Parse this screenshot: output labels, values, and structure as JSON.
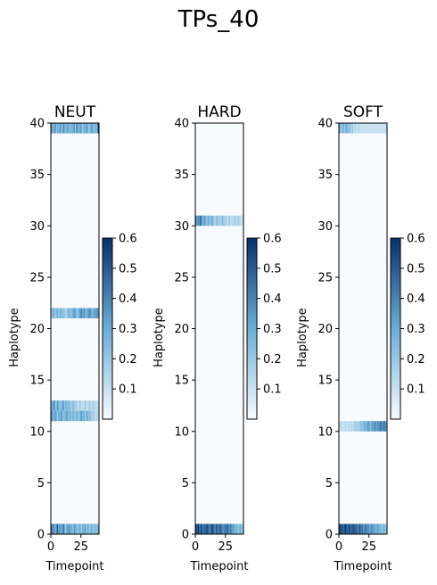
{
  "figure": {
    "suptitle": "TPs_40"
  },
  "chart_data": [
    {
      "type": "heatmap",
      "title": "NEUT",
      "xlabel": "Timepoint",
      "ylabel": "Haplotype",
      "xticks": [
        0,
        25
      ],
      "yticks": [
        0,
        5,
        10,
        15,
        20,
        25,
        30,
        35,
        40
      ],
      "xlim": [
        0,
        40
      ],
      "ylim": [
        0,
        40
      ],
      "colormap": "Blues",
      "colorbar": {
        "ticks": [
          0.1,
          0.2,
          0.3,
          0.4,
          0.5,
          0.6
        ],
        "vmin": 0.0,
        "vmax": 0.6,
        "low_color": "#f7fbff",
        "high_color": "#08306b"
      },
      "dense_rows": [
        {
          "haplotype": 39,
          "values": [
            0.35,
            0.3,
            0.25,
            0.4,
            0.2,
            0.3,
            0.25,
            0.35,
            0.3,
            0.2,
            0.4,
            0.3,
            0.25,
            0.3,
            0.35,
            0.2,
            0.3,
            0.25,
            0.3,
            0.35,
            0.2,
            0.4,
            0.3,
            0.25,
            0.35,
            0.3,
            0.2,
            0.3,
            0.25,
            0.35,
            0.3,
            0.2,
            0.25,
            0.3,
            0.35,
            0.2,
            0.3,
            0.25,
            0.3,
            0.6
          ]
        },
        {
          "haplotype": 12,
          "values": [
            0.3,
            0.25,
            0.4,
            0.3,
            0.2,
            0.35,
            0.3,
            0.2,
            0.25,
            0.3,
            0.35,
            0.2,
            0.3,
            0.25,
            0.2,
            0.3,
            0.15,
            0.2,
            0.25,
            0.2,
            0.15,
            0.2,
            0.1,
            0.15,
            0.2,
            0.1,
            0.15,
            0.1,
            0.2,
            0.15,
            0.1,
            0.15,
            0.2,
            0.1,
            0.15,
            0.2,
            0.1,
            0.15,
            0.1,
            0.1
          ]
        },
        {
          "haplotype": 11,
          "values": [
            0.4,
            0.3,
            0.25,
            0.35,
            0.3,
            0.2,
            0.3,
            0.25,
            0.35,
            0.3,
            0.2,
            0.25,
            0.3,
            0.35,
            0.2,
            0.3,
            0.25,
            0.2,
            0.3,
            0.25,
            0.2,
            0.3,
            0.25,
            0.2,
            0.3,
            0.35,
            0.25,
            0.3,
            0.2,
            0.25,
            0.3,
            0.2,
            0.25,
            0.2,
            0.15,
            0.2,
            0.15,
            0.1,
            0.15,
            0.1
          ]
        },
        {
          "haplotype": 21,
          "values": [
            0.2,
            0.25,
            0.3,
            0.2,
            0.25,
            0.3,
            0.2,
            0.25,
            0.3,
            0.2,
            0.25,
            0.2,
            0.15,
            0.2,
            0.25,
            0.3,
            0.2,
            0.25,
            0.3,
            0.35,
            0.3,
            0.25,
            0.2,
            0.3,
            0.35,
            0.4,
            0.3,
            0.35,
            0.3,
            0.25,
            0.3,
            0.35,
            0.4,
            0.3,
            0.25,
            0.3,
            0.35,
            0.3,
            0.4,
            0.3
          ]
        },
        {
          "haplotype": 0,
          "values": [
            0.5,
            0.3,
            0.45,
            0.25,
            0.35,
            0.5,
            0.3,
            0.4,
            0.25,
            0.35,
            0.45,
            0.3,
            0.2,
            0.35,
            0.3,
            0.4,
            0.25,
            0.3,
            0.2,
            0.35,
            0.3,
            0.25,
            0.2,
            0.3,
            0.25,
            0.2,
            0.3,
            0.25,
            0.35,
            0.2,
            0.3,
            0.25,
            0.2,
            0.3,
            0.25,
            0.2,
            0.3,
            0.2,
            0.25,
            0.3
          ]
        }
      ]
    },
    {
      "type": "heatmap",
      "title": "HARD",
      "xlabel": "Timepoint",
      "ylabel": "Haplotype",
      "xticks": [
        0,
        25
      ],
      "yticks": [
        0,
        5,
        10,
        15,
        20,
        25,
        30,
        35,
        40
      ],
      "xlim": [
        0,
        40
      ],
      "ylim": [
        0,
        40
      ],
      "colormap": "Blues",
      "colorbar": {
        "ticks": [
          0.1,
          0.2,
          0.3,
          0.4,
          0.5,
          0.6
        ],
        "vmin": 0.0,
        "vmax": 0.6,
        "low_color": "#f7fbff",
        "high_color": "#08306b"
      },
      "dense_rows": [
        {
          "haplotype": 30,
          "values": [
            0.45,
            0.3,
            0.4,
            0.35,
            0.5,
            0.3,
            0.25,
            0.35,
            0.3,
            0.2,
            0.3,
            0.25,
            0.2,
            0.3,
            0.25,
            0.2,
            0.15,
            0.2,
            0.25,
            0.15,
            0.2,
            0.15,
            0.25,
            0.2,
            0.15,
            0.2,
            0.1,
            0.15,
            0.2,
            0.1,
            0.15,
            0.1,
            0.2,
            0.15,
            0.1,
            0.2,
            0.15,
            0.1,
            0.1,
            0.1
          ]
        },
        {
          "haplotype": 0,
          "values": [
            0.55,
            0.5,
            0.6,
            0.45,
            0.5,
            0.55,
            0.4,
            0.5,
            0.45,
            0.55,
            0.5,
            0.4,
            0.45,
            0.5,
            0.55,
            0.45,
            0.4,
            0.5,
            0.45,
            0.4,
            0.5,
            0.45,
            0.4,
            0.35,
            0.45,
            0.4,
            0.5,
            0.4,
            0.35,
            0.45,
            0.3,
            0.35,
            0.3,
            0.25,
            0.3,
            0.2,
            0.25,
            0.3,
            0.2,
            0.25
          ]
        }
      ]
    },
    {
      "type": "heatmap",
      "title": "SOFT",
      "xlabel": "Timepoint",
      "ylabel": "Haplotype",
      "xticks": [
        0,
        25
      ],
      "yticks": [
        0,
        5,
        10,
        15,
        20,
        25,
        30,
        35,
        40
      ],
      "xlim": [
        0,
        40
      ],
      "ylim": [
        0,
        40
      ],
      "colormap": "Blues",
      "colorbar": {
        "ticks": [
          0.1,
          0.2,
          0.3,
          0.4,
          0.5,
          0.6
        ],
        "vmin": 0.0,
        "vmax": 0.6,
        "low_color": "#f7fbff",
        "high_color": "#08306b"
      },
      "dense_rows": [
        {
          "haplotype": 39,
          "values": [
            0.3,
            0.2,
            0.25,
            0.3,
            0.2,
            0.25,
            0.3,
            0.2,
            0.25,
            0.2,
            0.15,
            0.2,
            0.1,
            0.15,
            0.1,
            0.1,
            0.15,
            0.1,
            0.1,
            0.1,
            0.1,
            0.1,
            0.1,
            0.1,
            0.1,
            0.1,
            0.1,
            0.1,
            0.1,
            0.1,
            0.1,
            0.1,
            0.1,
            0.1,
            0.1,
            0.1,
            0.1,
            0.1,
            0.1,
            0.1
          ]
        },
        {
          "haplotype": 10,
          "values": [
            0.1,
            0.1,
            0.15,
            0.1,
            0.1,
            0.15,
            0.1,
            0.1,
            0.15,
            0.1,
            0.15,
            0.1,
            0.15,
            0.2,
            0.15,
            0.2,
            0.15,
            0.2,
            0.25,
            0.2,
            0.25,
            0.3,
            0.25,
            0.3,
            0.35,
            0.3,
            0.25,
            0.35,
            0.3,
            0.4,
            0.35,
            0.3,
            0.4,
            0.35,
            0.45,
            0.4,
            0.35,
            0.45,
            0.4,
            0.3
          ]
        },
        {
          "haplotype": 0,
          "values": [
            0.6,
            0.5,
            0.55,
            0.45,
            0.5,
            0.6,
            0.5,
            0.45,
            0.55,
            0.5,
            0.45,
            0.5,
            0.55,
            0.45,
            0.5,
            0.4,
            0.45,
            0.5,
            0.4,
            0.45,
            0.35,
            0.4,
            0.45,
            0.35,
            0.4,
            0.3,
            0.35,
            0.4,
            0.3,
            0.35,
            0.25,
            0.3,
            0.35,
            0.25,
            0.3,
            0.2,
            0.25,
            0.3,
            0.2,
            0.25
          ]
        }
      ]
    }
  ]
}
